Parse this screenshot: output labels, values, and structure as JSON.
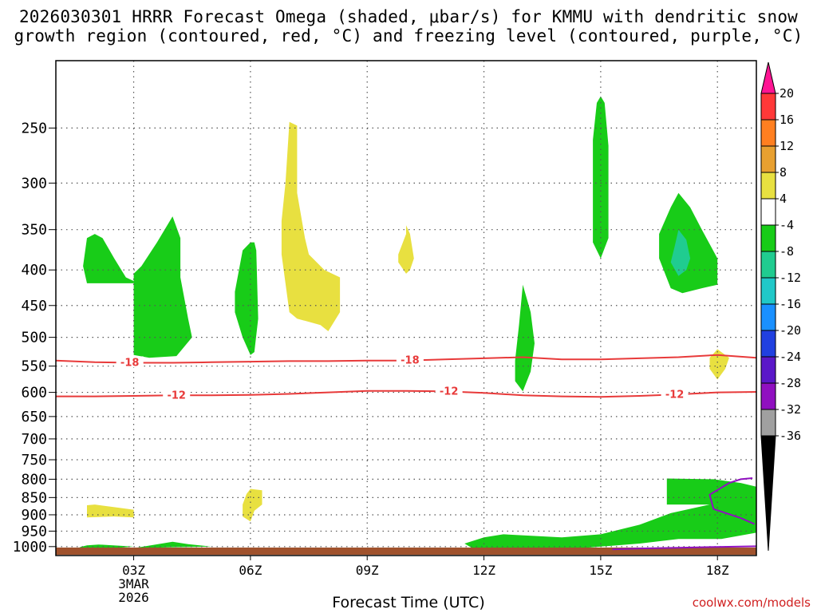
{
  "title_line1": "2026030301 HRRR Forecast Omega (shaded, μbar/s) for KMMU with dendritic snow",
  "title_line2": "growth region (contoured, red, °C) and freezing level (contoured, purple, °C)",
  "credit": "coolwx.com/models",
  "chart_data": {
    "type": "contour",
    "xlabel": "Forecast Time (UTC)",
    "ylabel": "",
    "x_ticks": [
      {
        "label": "03Z",
        "sub": [
          "3MAR",
          "2026"
        ],
        "hour": 3
      },
      {
        "label": "06Z",
        "sub": [],
        "hour": 6
      },
      {
        "label": "09Z",
        "sub": [],
        "hour": 9
      },
      {
        "label": "12Z",
        "sub": [],
        "hour": 12
      },
      {
        "label": "15Z",
        "sub": [],
        "hour": 15
      },
      {
        "label": "18Z",
        "sub": [],
        "hour": 18
      }
    ],
    "xlim_hours": [
      1,
      19
    ],
    "y_ticks": [
      250,
      300,
      350,
      400,
      450,
      500,
      550,
      600,
      650,
      700,
      750,
      800,
      850,
      900,
      950,
      1000
    ],
    "ylim_mb": [
      200,
      1030
    ],
    "colorbar": {
      "labels": [
        "20",
        "16",
        "12",
        "8",
        "4",
        "-4",
        "-8",
        "-12",
        "-16",
        "-20",
        "-24",
        "-28",
        "-32",
        "-36"
      ],
      "colors": [
        "#ff1493",
        "#ff3838",
        "#ff7f20",
        "#e8a030",
        "#e8e040",
        "#ffffff",
        "#18cc18",
        "#20cc90",
        "#20c8c8",
        "#1a90ff",
        "#2040e0",
        "#5a18c8",
        "#9010c0",
        "#a0a0a0",
        "#000000"
      ]
    },
    "contours": [
      {
        "name": "-18",
        "color": "#e83a3a",
        "points": [
          [
            1,
            540
          ],
          [
            2,
            543
          ],
          [
            3,
            544
          ],
          [
            4,
            544
          ],
          [
            5,
            543
          ],
          [
            6,
            542
          ],
          [
            7,
            541
          ],
          [
            8,
            541
          ],
          [
            9,
            540
          ],
          [
            10,
            540
          ],
          [
            11,
            538
          ],
          [
            12,
            536
          ],
          [
            13,
            534
          ],
          [
            14,
            538
          ],
          [
            15,
            538
          ],
          [
            16,
            536
          ],
          [
            17,
            534
          ],
          [
            18,
            530
          ],
          [
            19,
            535
          ]
        ],
        "label_hours": [
          2.9,
          10.1
        ]
      },
      {
        "name": "-12",
        "color": "#e83a3a",
        "points": [
          [
            1,
            608
          ],
          [
            2,
            608
          ],
          [
            3,
            607
          ],
          [
            4,
            606
          ],
          [
            5,
            606
          ],
          [
            6,
            605
          ],
          [
            7,
            603
          ],
          [
            8,
            600
          ],
          [
            9,
            597
          ],
          [
            10,
            597
          ],
          [
            11,
            598
          ],
          [
            12,
            601
          ],
          [
            13,
            606
          ],
          [
            14,
            608
          ],
          [
            15,
            609
          ],
          [
            16,
            607
          ],
          [
            17,
            604
          ],
          [
            18,
            600
          ],
          [
            19,
            599
          ]
        ],
        "label_hours": [
          4.1,
          11.1,
          16.9
        ]
      },
      {
        "name": "freezing",
        "color": "#9010c0",
        "points": [
          [
            15.3,
            1009
          ],
          [
            16,
            1006
          ],
          [
            17,
            1004
          ],
          [
            18,
            1001
          ],
          [
            19,
            999
          ]
        ],
        "label_hours": []
      },
      {
        "name": "freezing2",
        "color": "#9010c0",
        "points": [
          [
            18.9,
            797
          ],
          [
            18.6,
            800
          ],
          [
            18.3,
            810
          ],
          [
            17.8,
            842
          ],
          [
            17.9,
            883
          ],
          [
            18.6,
            910
          ],
          [
            18.95,
            928
          ]
        ],
        "label_hours": []
      }
    ],
    "shaded_regions": [
      {
        "fill": "#18cc18",
        "points": [
          [
            2,
            355
          ],
          [
            2.2,
            360
          ],
          [
            2.5,
            385
          ],
          [
            2.8,
            410
          ],
          [
            3,
            415
          ],
          [
            3,
            418
          ],
          [
            1.8,
            418
          ],
          [
            1.7,
            395
          ],
          [
            1.8,
            360
          ]
        ]
      },
      {
        "fill": "#18cc18",
        "points": [
          [
            3,
            410
          ],
          [
            3,
            530
          ],
          [
            3.4,
            535
          ],
          [
            4.1,
            532
          ],
          [
            4.5,
            500
          ],
          [
            4.4,
            470
          ],
          [
            4.2,
            410
          ],
          [
            4.2,
            360
          ],
          [
            4,
            335
          ],
          [
            3.6,
            365
          ],
          [
            3.2,
            395
          ],
          [
            3,
            405
          ]
        ]
      },
      {
        "fill": "#18cc18",
        "points": [
          [
            6,
            365
          ],
          [
            6.1,
            365
          ],
          [
            6.15,
            375
          ],
          [
            6.2,
            470
          ],
          [
            6.1,
            525
          ],
          [
            6,
            530
          ],
          [
            5.8,
            500
          ],
          [
            5.6,
            460
          ],
          [
            5.6,
            430
          ],
          [
            5.8,
            375
          ]
        ]
      },
      {
        "fill": "#e8e040",
        "points": [
          [
            7,
            245
          ],
          [
            7.2,
            248
          ],
          [
            7.2,
            310
          ],
          [
            7.4,
            360
          ],
          [
            7.5,
            380
          ],
          [
            7.9,
            400
          ],
          [
            8.3,
            410
          ],
          [
            8.3,
            460
          ],
          [
            8,
            490
          ],
          [
            7.8,
            480
          ],
          [
            7.2,
            470
          ],
          [
            7,
            460
          ],
          [
            6.8,
            380
          ],
          [
            6.8,
            340
          ],
          [
            6.9,
            300
          ]
        ]
      },
      {
        "fill": "#e8e040",
        "points": [
          [
            10,
            345
          ],
          [
            10.1,
            355
          ],
          [
            10.2,
            385
          ],
          [
            10.1,
            400
          ],
          [
            10,
            405
          ],
          [
            9.8,
            390
          ],
          [
            9.8,
            380
          ],
          [
            10,
            355
          ]
        ]
      },
      {
        "fill": "#18cc18",
        "points": [
          [
            13,
            420
          ],
          [
            13.2,
            460
          ],
          [
            13.3,
            510
          ],
          [
            13.2,
            560
          ],
          [
            13,
            598
          ],
          [
            12.8,
            578
          ],
          [
            12.8,
            540
          ],
          [
            12.9,
            480
          ]
        ]
      },
      {
        "fill": "#18cc18",
        "points": [
          [
            15,
            225
          ],
          [
            15.1,
            230
          ],
          [
            15.2,
            265
          ],
          [
            15.2,
            310
          ],
          [
            15.2,
            360
          ],
          [
            15,
            385
          ],
          [
            14.8,
            365
          ],
          [
            14.8,
            300
          ],
          [
            14.8,
            260
          ],
          [
            14.9,
            230
          ]
        ]
      },
      {
        "fill": "#18cc18",
        "points": [
          [
            17,
            310
          ],
          [
            17.3,
            325
          ],
          [
            17.6,
            350
          ],
          [
            18,
            385
          ],
          [
            18,
            420
          ],
          [
            17.6,
            425
          ],
          [
            17.1,
            432
          ],
          [
            16.8,
            425
          ],
          [
            16.5,
            385
          ],
          [
            16.5,
            355
          ],
          [
            16.8,
            325
          ]
        ]
      },
      {
        "fill": "#20cc90",
        "points": [
          [
            17,
            350
          ],
          [
            17.2,
            362
          ],
          [
            17.3,
            385
          ],
          [
            17.2,
            400
          ],
          [
            17,
            408
          ],
          [
            16.8,
            390
          ],
          [
            16.9,
            370
          ]
        ]
      },
      {
        "fill": "#e8e040",
        "points": [
          [
            18,
            520
          ],
          [
            18.3,
            535
          ],
          [
            18.2,
            555
          ],
          [
            18,
            575
          ],
          [
            17.8,
            555
          ],
          [
            17.8,
            535
          ]
        ]
      },
      {
        "fill": "#e8e040",
        "points": [
          [
            1.8,
            872
          ],
          [
            2,
            870
          ],
          [
            3,
            885
          ],
          [
            3,
            908
          ],
          [
            2.5,
            905
          ],
          [
            1.8,
            908
          ],
          [
            1.8,
            890
          ]
        ]
      },
      {
        "fill": "#e8e040",
        "points": [
          [
            6,
            826
          ],
          [
            6.3,
            830
          ],
          [
            6.3,
            870
          ],
          [
            6.1,
            888
          ],
          [
            6,
            920
          ],
          [
            5.8,
            905
          ],
          [
            5.8,
            870
          ],
          [
            5.9,
            840
          ]
        ]
      },
      {
        "fill": "#18cc18",
        "points": [
          [
            1.8,
            996
          ],
          [
            2.1,
            993
          ],
          [
            3,
            1000
          ],
          [
            2.5,
            1005
          ],
          [
            1.8,
            1007
          ],
          [
            1.6,
            1002
          ]
        ]
      },
      {
        "fill": "#18cc18",
        "points": [
          [
            3,
            1005
          ],
          [
            4,
            984
          ],
          [
            4.4,
            992
          ],
          [
            5,
            1000
          ],
          [
            4,
            1002
          ],
          [
            3,
            1005
          ]
        ]
      },
      {
        "fill": "#18cc18",
        "points": [
          [
            11.5,
            990
          ],
          [
            12,
            970
          ],
          [
            12.5,
            960
          ],
          [
            14,
            970
          ],
          [
            15,
            960
          ],
          [
            16,
            930
          ],
          [
            16.8,
            895
          ],
          [
            17.8,
            870
          ],
          [
            16.7,
            870
          ],
          [
            16.7,
            798
          ],
          [
            17.9,
            800
          ],
          [
            18.6,
            810
          ],
          [
            19,
            820
          ],
          [
            19,
            955
          ],
          [
            18.1,
            975
          ],
          [
            17,
            975
          ],
          [
            16,
            990
          ],
          [
            14.5,
            1005
          ],
          [
            13,
            1007
          ],
          [
            11.7,
            1005
          ]
        ]
      }
    ]
  }
}
